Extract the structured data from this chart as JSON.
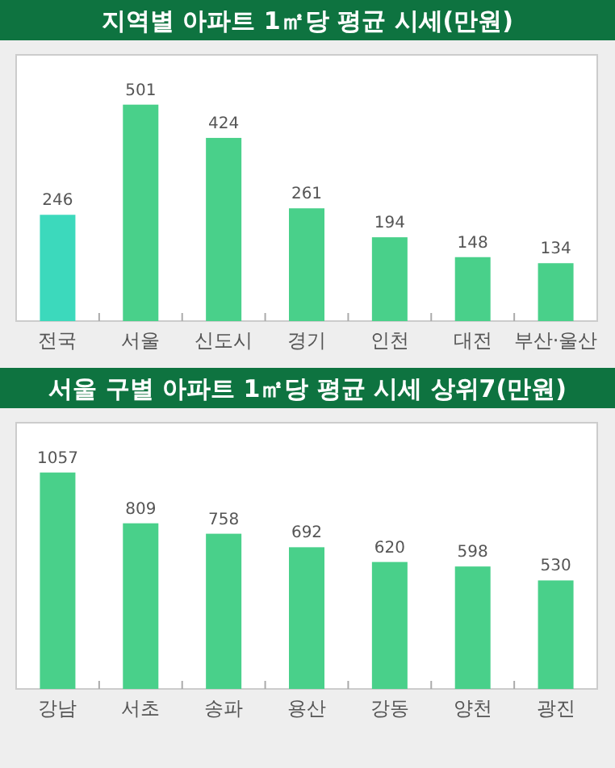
{
  "chart_data": [
    {
      "type": "bar",
      "title": "지역별 아파트 1㎡당 평균 시세(만원)",
      "categories": [
        "전국",
        "서울",
        "신도시",
        "경기",
        "인천",
        "대전",
        "부산·울산"
      ],
      "values": [
        246,
        501,
        424,
        261,
        194,
        148,
        134
      ],
      "colors": [
        "#3cd9bc",
        "#49d08a",
        "#49d08a",
        "#49d08a",
        "#49d08a",
        "#49d08a",
        "#49d08a"
      ],
      "data_labels": true
    },
    {
      "type": "bar",
      "title": "서울 구별 아파트 1㎡당 평균 시세 상위7(만원)",
      "categories": [
        "강남",
        "서초",
        "송파",
        "용산",
        "강동",
        "양천",
        "광진"
      ],
      "values": [
        1057,
        809,
        758,
        692,
        620,
        598,
        530
      ],
      "colors": [
        "#49d08a",
        "#49d08a",
        "#49d08a",
        "#49d08a",
        "#49d08a",
        "#49d08a",
        "#49d08a"
      ],
      "data_labels": true
    }
  ]
}
